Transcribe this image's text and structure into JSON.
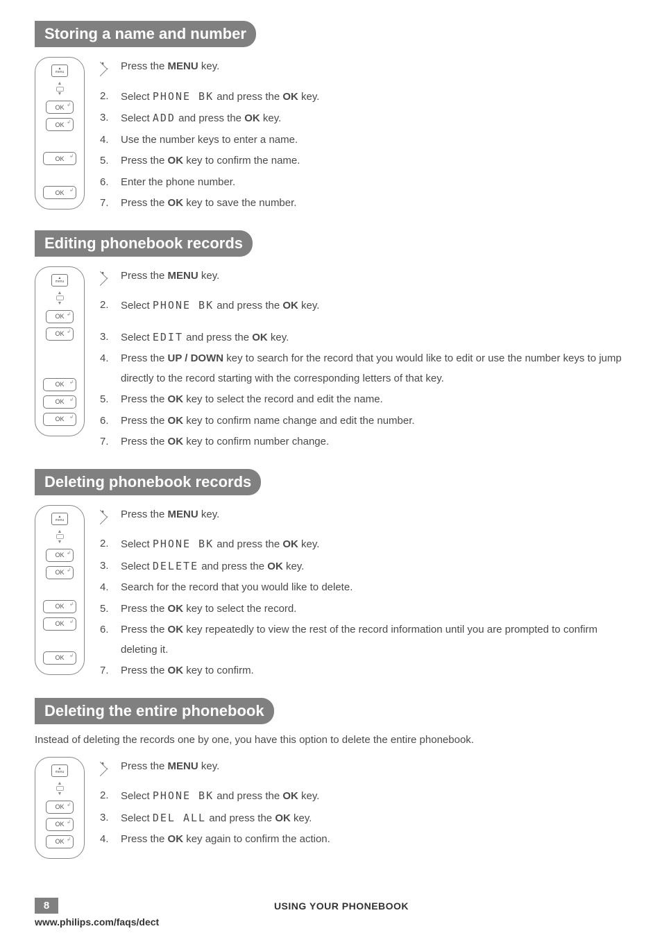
{
  "sections": [
    {
      "title": "Storing a name and number",
      "intro": null,
      "buttons": [
        "menu",
        "arrows",
        "ok",
        "ok",
        "gap-md",
        "ok-long",
        "gap-md",
        "ok-long"
      ],
      "steps": [
        [
          {
            "t": "Press the "
          },
          {
            "t": "MENU",
            "b": true
          },
          {
            "t": " key."
          }
        ],
        [
          {
            "t": "Select "
          },
          {
            "t": "PHONE BK",
            "lcd": true
          },
          {
            "t": " and press the "
          },
          {
            "t": "OK",
            "b": true
          },
          {
            "t": " key."
          }
        ],
        [
          {
            "t": "Select "
          },
          {
            "t": "ADD",
            "lcd": true
          },
          {
            "t": " and press the "
          },
          {
            "t": "OK",
            "b": true
          },
          {
            "t": " key."
          }
        ],
        [
          {
            "t": "Use the number keys to enter a name."
          }
        ],
        [
          {
            "t": "Press the "
          },
          {
            "t": "OK",
            "b": true
          },
          {
            "t": " key to confirm the name."
          }
        ],
        [
          {
            "t": " Enter the phone number."
          }
        ],
        [
          {
            "t": "Press the "
          },
          {
            "t": "OK",
            "b": true
          },
          {
            "t": " key to save the number."
          }
        ]
      ]
    },
    {
      "title": "Editing phonebook records",
      "intro": null,
      "buttons": [
        "menu",
        "arrows",
        "ok",
        "ok",
        "gap-md",
        "gap-md",
        "ok-long",
        "ok-long",
        "ok-long"
      ],
      "steps": [
        [
          {
            "t": "Press the "
          },
          {
            "t": "MENU",
            "b": true
          },
          {
            "t": " key."
          }
        ],
        [
          {
            "t": "Select "
          },
          {
            "t": "PHONE BK",
            "lcd": true
          },
          {
            "t": " and press the "
          },
          {
            "t": "OK",
            "b": true
          },
          {
            "t": " key."
          }
        ],
        [
          {
            "t": "Select "
          },
          {
            "t": "EDIT",
            "lcd": true
          },
          {
            "t": " and press the "
          },
          {
            "t": "OK",
            "b": true
          },
          {
            "t": " key."
          }
        ],
        [
          {
            "t": "Press the "
          },
          {
            "t": "UP / DOWN",
            "b": true
          },
          {
            "t": " key to search for the record that you would like to edit or use the number keys to jump directly to the record starting with the corresponding letters of that key."
          }
        ],
        [
          {
            "t": "Press the "
          },
          {
            "t": "OK",
            "b": true
          },
          {
            "t": " key to select the record and edit the name."
          }
        ],
        [
          {
            "t": "Press the "
          },
          {
            "t": "OK",
            "b": true
          },
          {
            "t": " key to confirm name change and edit the number."
          }
        ],
        [
          {
            "t": "Press the "
          },
          {
            "t": "OK",
            "b": true
          },
          {
            "t": " key to confirm number change."
          }
        ]
      ],
      "gap_after_step": 3
    },
    {
      "title": "Deleting phonebook records",
      "intro": null,
      "buttons": [
        "menu",
        "arrows",
        "ok",
        "ok",
        "gap-md",
        "ok-long",
        "ok-long",
        "gap-md",
        "ok-long"
      ],
      "steps": [
        [
          {
            "t": "Press the "
          },
          {
            "t": "MENU",
            "b": true
          },
          {
            "t": " key."
          }
        ],
        [
          {
            "t": "Select "
          },
          {
            "t": "PHONE BK",
            "lcd": true
          },
          {
            "t": " and press the "
          },
          {
            "t": "OK",
            "b": true
          },
          {
            "t": " key."
          }
        ],
        [
          {
            "t": "Select "
          },
          {
            "t": "DELETE",
            "lcd": true
          },
          {
            "t": " and press the "
          },
          {
            "t": "OK",
            "b": true
          },
          {
            "t": " key."
          }
        ],
        [
          {
            "t": "Search for the record that you would like to delete."
          }
        ],
        [
          {
            "t": "Press the "
          },
          {
            "t": "OK",
            "b": true
          },
          {
            "t": " key to select the record."
          }
        ],
        [
          {
            "t": "Press the "
          },
          {
            "t": "OK",
            "b": true
          },
          {
            "t": " key repeatedly to view the rest of the record information until you are prompted to confirm deleting it."
          }
        ],
        [
          {
            "t": "Press the "
          },
          {
            "t": "OK",
            "b": true
          },
          {
            "t": " key to confirm."
          }
        ]
      ]
    },
    {
      "title": "Deleting the entire phonebook",
      "intro": "Instead of deleting the records one by one, you have this option to delete the entire phonebook.",
      "buttons": [
        "menu",
        "arrows",
        "ok",
        "ok",
        "ok"
      ],
      "steps": [
        [
          {
            "t": "Press the "
          },
          {
            "t": "MENU",
            "b": true
          },
          {
            "t": " key."
          }
        ],
        [
          {
            "t": "Select "
          },
          {
            "t": "PHONE BK",
            "lcd": true
          },
          {
            "t": " and press the "
          },
          {
            "t": "OK",
            "b": true
          },
          {
            "t": " key."
          }
        ],
        [
          {
            "t": "Select "
          },
          {
            "t": "DEL ALL",
            "lcd": true
          },
          {
            "t": " and press the "
          },
          {
            "t": "OK",
            "b": true
          },
          {
            "t": " key."
          }
        ],
        [
          {
            "t": "Press the "
          },
          {
            "t": "OK",
            "b": true
          },
          {
            "t": " key again to confirm the action."
          }
        ]
      ]
    }
  ],
  "footer": {
    "page_number": "8",
    "title": "USING YOUR PHONEBOOK",
    "url": "www.philips.com/faqs/dect"
  }
}
